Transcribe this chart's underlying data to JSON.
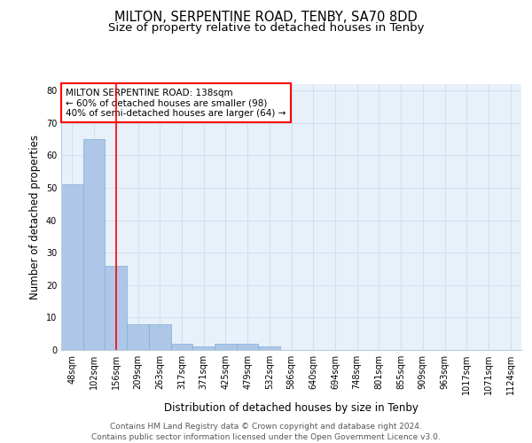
{
  "title": "MILTON, SERPENTINE ROAD, TENBY, SA70 8DD",
  "subtitle": "Size of property relative to detached houses in Tenby",
  "xlabel": "Distribution of detached houses by size in Tenby",
  "ylabel": "Number of detached properties",
  "categories": [
    "48sqm",
    "102sqm",
    "156sqm",
    "209sqm",
    "263sqm",
    "317sqm",
    "371sqm",
    "425sqm",
    "479sqm",
    "532sqm",
    "586sqm",
    "640sqm",
    "694sqm",
    "748sqm",
    "801sqm",
    "855sqm",
    "909sqm",
    "963sqm",
    "1017sqm",
    "1071sqm",
    "1124sqm"
  ],
  "values": [
    51,
    65,
    26,
    8,
    8,
    2,
    1,
    2,
    2,
    1,
    0,
    0,
    0,
    0,
    0,
    0,
    0,
    0,
    0,
    0,
    0
  ],
  "bar_color": "#aec6e8",
  "bar_edge_color": "#7aafd4",
  "grid_color": "#d0dff0",
  "background_color": "#e8f0fa",
  "red_line_x": 2,
  "annotation_text": "MILTON SERPENTINE ROAD: 138sqm\n← 60% of detached houses are smaller (98)\n40% of semi-detached houses are larger (64) →",
  "annotation_box_color": "white",
  "annotation_box_edge": "red",
  "ylim": [
    0,
    82
  ],
  "yticks": [
    0,
    10,
    20,
    30,
    40,
    50,
    60,
    70,
    80
  ],
  "footer": "Contains HM Land Registry data © Crown copyright and database right 2024.\nContains public sector information licensed under the Open Government Licence v3.0.",
  "title_fontsize": 10.5,
  "subtitle_fontsize": 9.5,
  "xlabel_fontsize": 8.5,
  "ylabel_fontsize": 8.5,
  "tick_fontsize": 7,
  "annotation_fontsize": 7.5,
  "footer_fontsize": 6.5
}
